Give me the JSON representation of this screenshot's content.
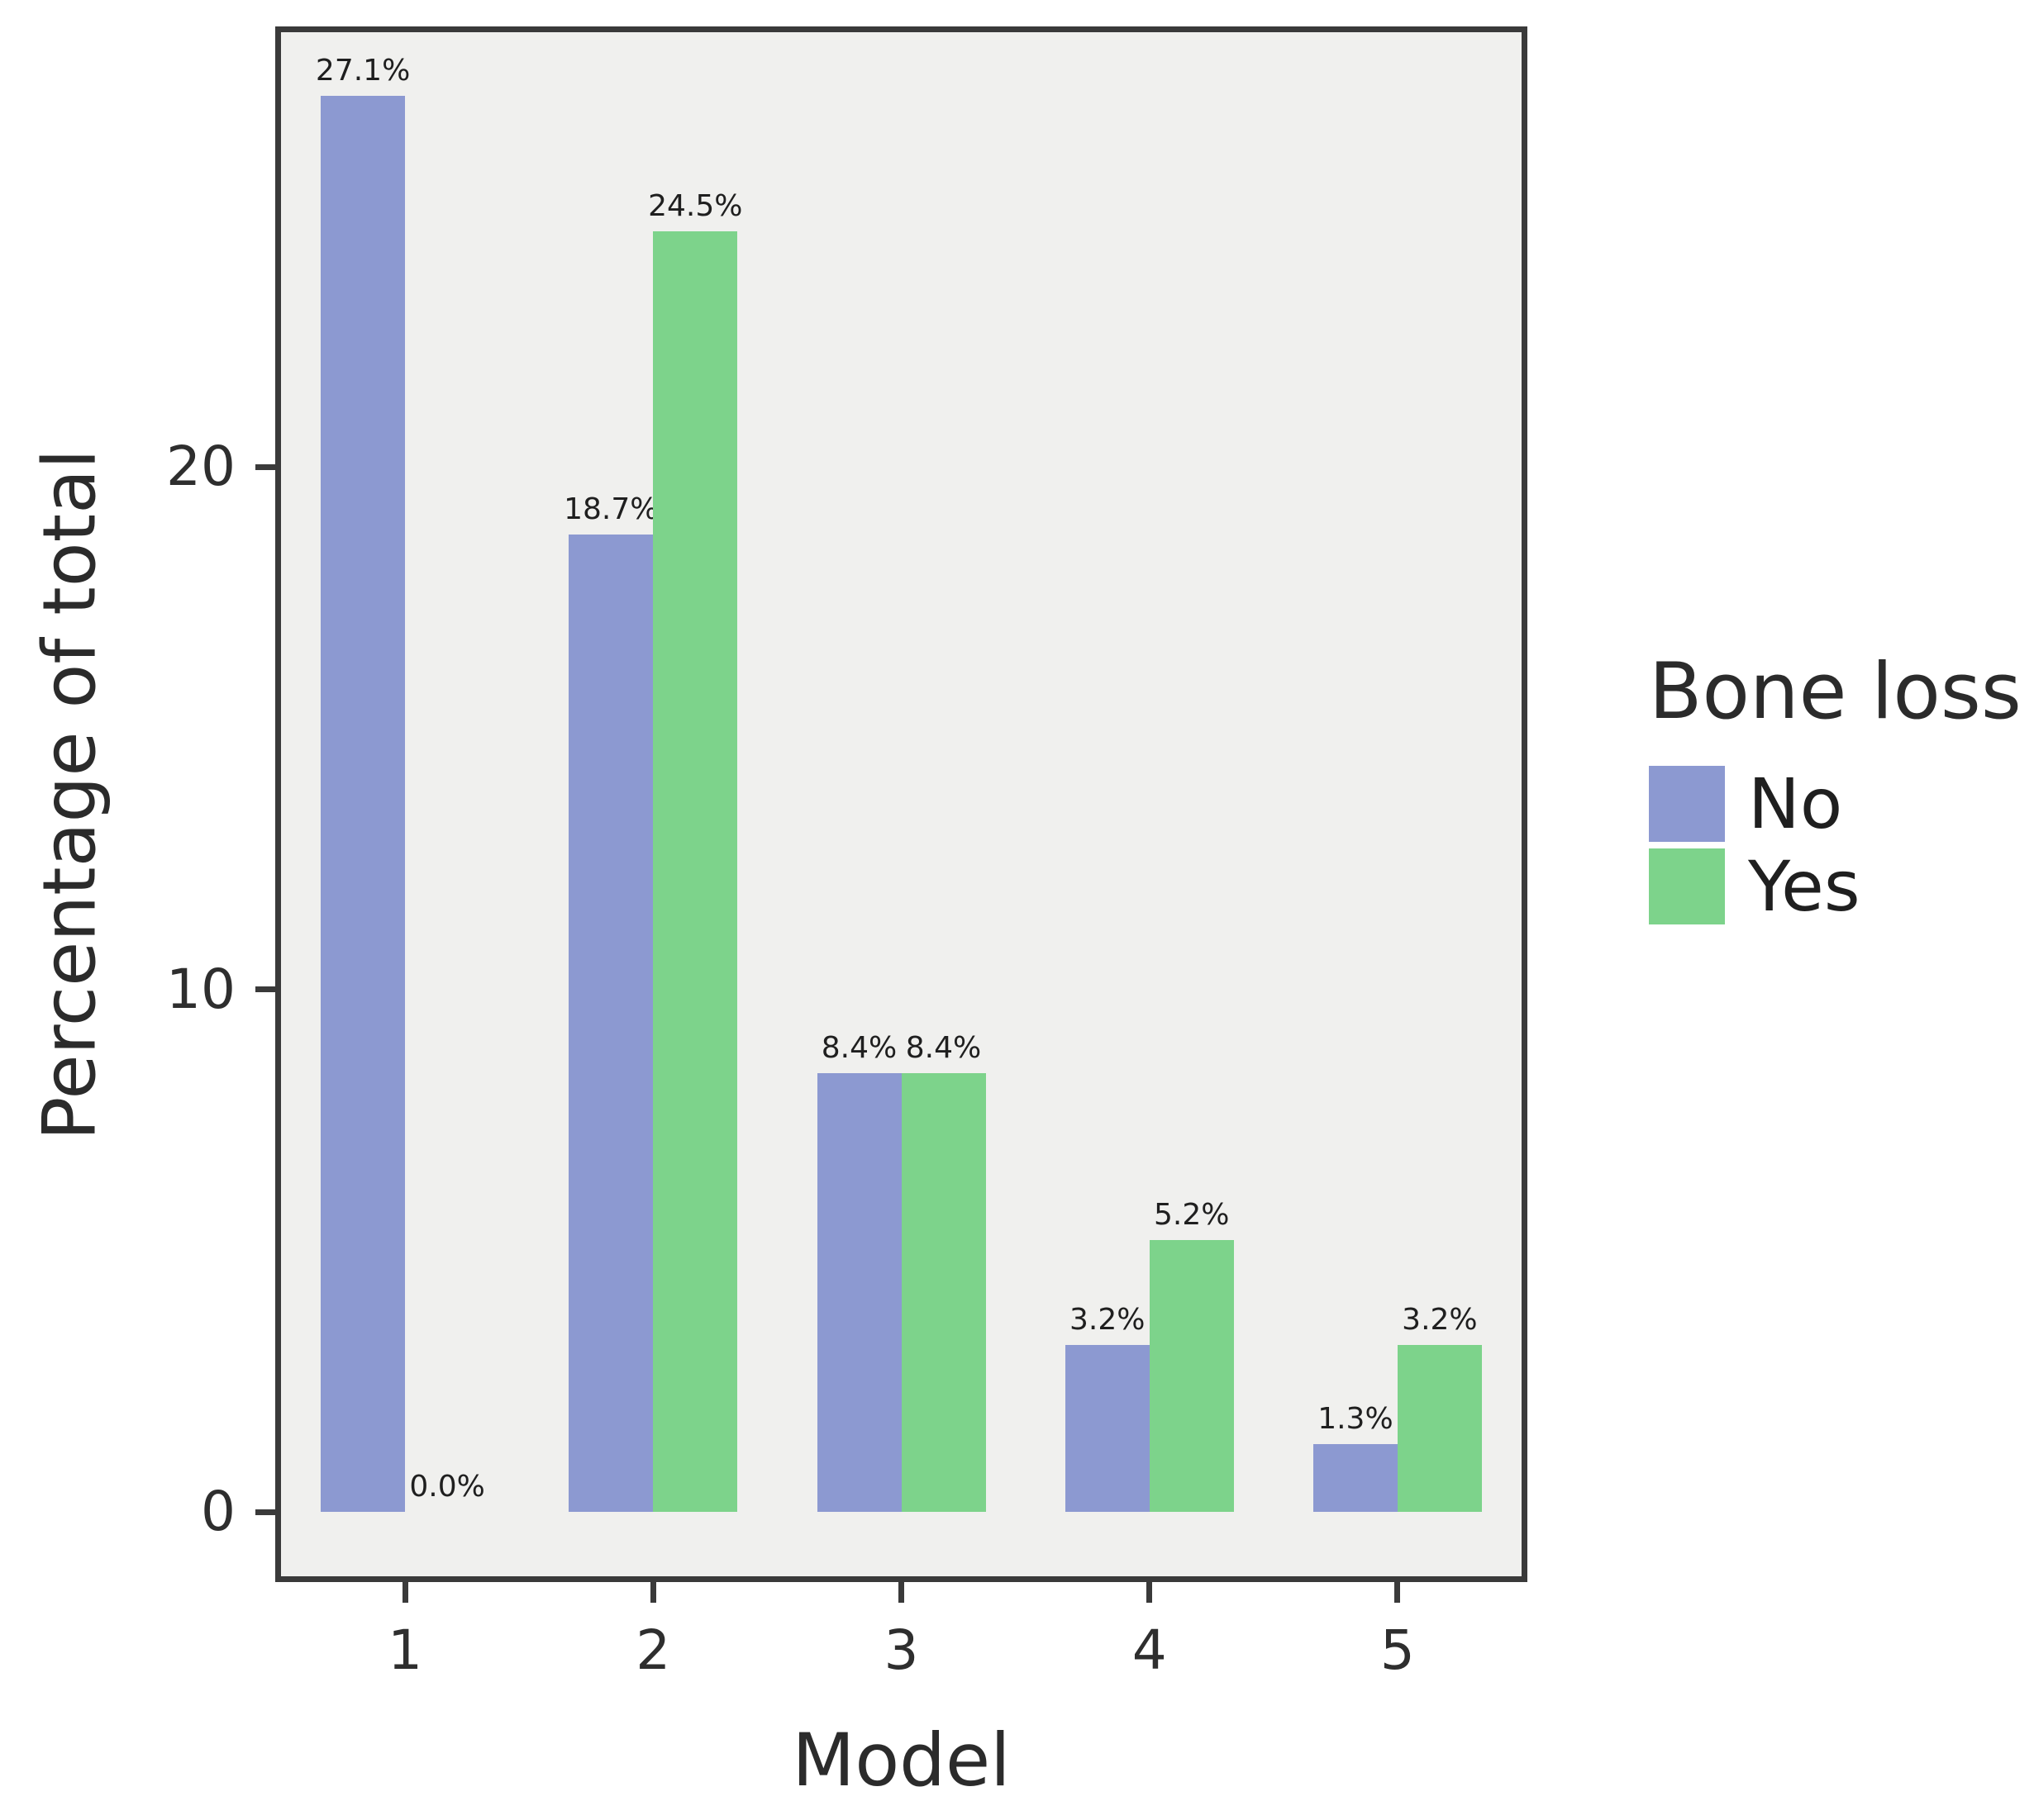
{
  "chart_data": {
    "type": "bar",
    "title": "",
    "xlabel": "Model",
    "ylabel": "Percentage of total",
    "categories": [
      "1",
      "2",
      "3",
      "4",
      "5"
    ],
    "series": [
      {
        "name": "No",
        "color": "#8c99d1",
        "values": [
          27.1,
          18.7,
          8.4,
          3.2,
          1.3
        ],
        "labels": [
          "27.1%",
          "18.7%",
          "8.4%",
          "3.2%",
          "1.3%"
        ]
      },
      {
        "name": "Yes",
        "color": "#7dd38b",
        "values": [
          0.0,
          24.5,
          8.4,
          5.2,
          3.2
        ],
        "labels": [
          "0.0%",
          "24.5%",
          "8.4%",
          "5.2%",
          "3.2%"
        ]
      }
    ],
    "yticks": [
      {
        "value": 0,
        "label": "0"
      },
      {
        "value": 10,
        "label": "10"
      },
      {
        "value": 20,
        "label": "20"
      }
    ],
    "ylim": [
      -1.3,
      28.6
    ],
    "grid": false,
    "legend": {
      "title": "Bone loss",
      "position": "right",
      "items": [
        {
          "label": "No",
          "color": "#8c99d1"
        },
        {
          "label": "Yes",
          "color": "#7dd38b"
        }
      ]
    },
    "colors": {
      "plot_background": "#f0f0ee",
      "frame": "#3a3a3a",
      "text": "#2b2b2b"
    }
  }
}
